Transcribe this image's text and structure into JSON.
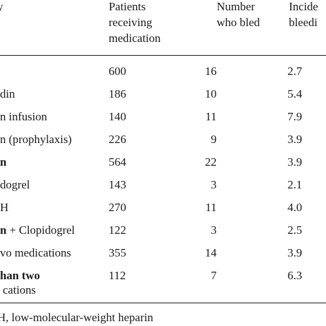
{
  "table": {
    "headers": {
      "col0": "y",
      "col1": [
        "Patients",
        "receiving",
        "medication"
      ],
      "col2": [
        "Number",
        "who bled"
      ],
      "col3": [
        "Incide",
        "bleedi"
      ]
    },
    "rows": [
      {
        "label": "",
        "patients": "600",
        "bled": "16",
        "incidence": "2.7"
      },
      {
        "label": "din",
        "patients": "186",
        "bled": "10",
        "incidence": "5.4"
      },
      {
        "label": "n infusion",
        "patients": "140",
        "bled": "11",
        "incidence": "7.9"
      },
      {
        "label": "n (prophylaxis)",
        "patients": "226",
        "bled": "9",
        "incidence": "3.9"
      },
      {
        "label": "n",
        "patients": "564",
        "bled": "22",
        "incidence": "3.9",
        "bold": true
      },
      {
        "label": "dogrel",
        "patients": "143",
        "bled": "3",
        "incidence": "2.1"
      },
      {
        "label": "H",
        "patients": "270",
        "bled": "11",
        "incidence": "4.0"
      },
      {
        "label": "n",
        "label_rest": " + Clopidogrel",
        "patients": "122",
        "bled": "3",
        "incidence": "2.5",
        "bold_prefix": true
      },
      {
        "label": "vo medications",
        "patients": "355",
        "bled": "14",
        "incidence": "3.9"
      },
      {
        "label": "han two",
        "label_cont": "cations",
        "patients": "112",
        "bled": "7",
        "incidence": "6.3",
        "bold_prefix": true
      }
    ]
  },
  "footnote": "H, low-molecular-weight heparin"
}
